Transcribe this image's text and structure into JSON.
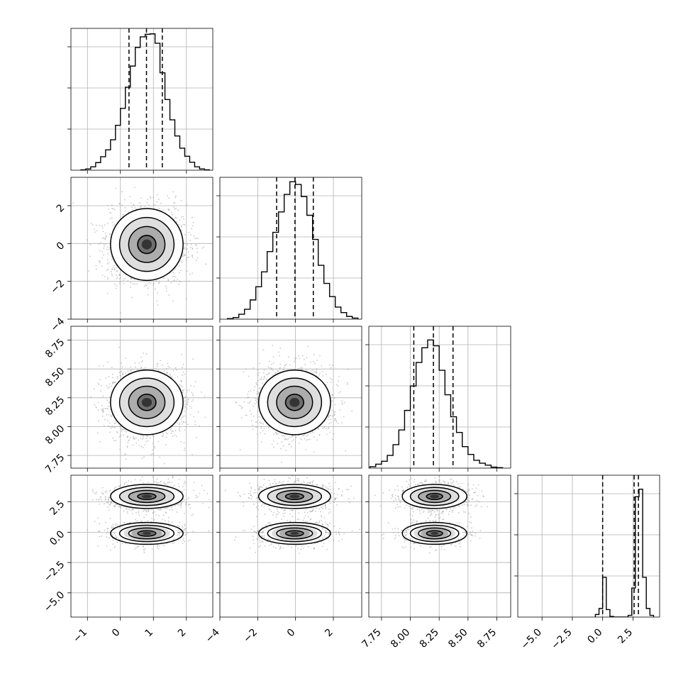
{
  "chart_data": {
    "type": "corner",
    "title": "",
    "parameters": [
      {
        "label": "",
        "range": [
          -1.5,
          2.8
        ],
        "ticks": [
          -1,
          0,
          1,
          2
        ],
        "tick_labels": [
          "−1",
          "0",
          "1",
          "2"
        ]
      },
      {
        "label": "",
        "range": [
          -4,
          3.5
        ],
        "ticks": [
          -4,
          -2,
          0,
          2
        ],
        "tick_labels": [
          "−4",
          "−2",
          "0",
          "2"
        ]
      },
      {
        "label": "",
        "range": [
          7.64,
          8.87
        ],
        "ticks": [
          7.75,
          8.0,
          8.25,
          8.5,
          8.75
        ],
        "tick_labels": [
          "7.75",
          "8.00",
          "8.25",
          "8.50",
          "8.75"
        ]
      },
      {
        "label": "",
        "range": [
          -7.0,
          4.7
        ],
        "ticks": [
          -5,
          -2.5,
          0,
          2.5
        ],
        "tick_labels": [
          "−5.0",
          "−2.5",
          "0.0",
          "2.5"
        ]
      }
    ],
    "histograms": [
      {
        "param": 0,
        "bin_edges": [
          -1.2,
          -1.05,
          -0.9,
          -0.75,
          -0.6,
          -0.45,
          -0.3,
          -0.15,
          0,
          0.15,
          0.3,
          0.45,
          0.6,
          0.75,
          0.9,
          1.05,
          1.2,
          1.35,
          1.5,
          1.65,
          1.8,
          1.95,
          2.1,
          2.25,
          2.4,
          2.55,
          2.7
        ],
        "counts": [
          1,
          3,
          8,
          18,
          32,
          48,
          72,
          106,
          146,
          196,
          246,
          290,
          315,
          321,
          322,
          300,
          230,
          167,
          119,
          81,
          52,
          33,
          19,
          8,
          3,
          1
        ],
        "quantiles": [
          0.26,
          0.79,
          1.27
        ],
        "ylim": [
          0,
          335
        ]
      },
      {
        "param": 1,
        "bin_edges": [
          -3.6,
          -3.3,
          -3.0,
          -2.7,
          -2.4,
          -2.1,
          -1.8,
          -1.5,
          -1.2,
          -0.9,
          -0.6,
          -0.3,
          0,
          0.3,
          0.6,
          0.9,
          1.2,
          1.5,
          1.8,
          2.1,
          2.4,
          2.7,
          3.0,
          3.3
        ],
        "counts": [
          1,
          3,
          9,
          18,
          35,
          59,
          86,
          123,
          158,
          195,
          227,
          250,
          245,
          223,
          189,
          145,
          98,
          65,
          41,
          22,
          12,
          5,
          2
        ],
        "quantiles": [
          -1.0,
          -0.03,
          0.94
        ],
        "ylim": [
          0,
          258
        ]
      },
      {
        "param": 2,
        "bin_edges": [
          7.65,
          7.7,
          7.75,
          7.8,
          7.85,
          7.9,
          7.95,
          8.0,
          8.05,
          8.1,
          8.15,
          8.2,
          8.25,
          8.3,
          8.35,
          8.4,
          8.45,
          8.5,
          8.55,
          8.6,
          8.65,
          8.7,
          8.75,
          8.8
        ],
        "counts": [
          3,
          8,
          14,
          26,
          48,
          78,
          118,
          168,
          216,
          246,
          262,
          250,
          200,
          150,
          105,
          73,
          44,
          28,
          16,
          10,
          6,
          2,
          1
        ],
        "quantiles": [
          8.03,
          8.2,
          8.37
        ],
        "ylim": [
          0,
          290
        ]
      },
      {
        "param": 3,
        "bin_edges": [
          -0.6,
          -0.3,
          0,
          0.3,
          0.6,
          0.9,
          1.2,
          1.5,
          1.8,
          2.1,
          2.4,
          2.7,
          3.0,
          3.3,
          3.6,
          3.9,
          4.2
        ],
        "counts": [
          12,
          40,
          185,
          35,
          3,
          0,
          0,
          0,
          0,
          8,
          135,
          560,
          595,
          185,
          40,
          8
        ],
        "quantiles": [
          0.0,
          2.6,
          2.95
        ],
        "ylim": [
          0,
          660
        ]
      }
    ],
    "pairs": [
      {
        "x_param": 0,
        "y_param": 1,
        "center": [
          0.8,
          -0.05
        ],
        "sigma": [
          0.55,
          0.95
        ]
      },
      {
        "x_param": 0,
        "y_param": 2,
        "center": [
          0.8,
          8.21
        ],
        "sigma": [
          0.55,
          0.14
        ]
      },
      {
        "x_param": 1,
        "y_param": 2,
        "center": [
          -0.05,
          8.21
        ],
        "sigma": [
          0.95,
          0.14
        ]
      },
      {
        "x_param": 0,
        "y_param": 3,
        "modes": [
          {
            "y": 2.95,
            "weight": 0.68,
            "sigma_y": 0.55
          },
          {
            "y": -0.1,
            "weight": 0.32,
            "sigma_y": 0.5
          }
        ],
        "x_center": 0.8,
        "x_sigma": 0.55
      },
      {
        "x_param": 1,
        "y_param": 3,
        "modes": [
          {
            "y": 2.95,
            "weight": 0.68,
            "sigma_y": 0.55
          },
          {
            "y": -0.1,
            "weight": 0.32,
            "sigma_y": 0.5
          }
        ],
        "x_center": -0.05,
        "x_sigma": 0.95
      },
      {
        "x_param": 2,
        "y_param": 3,
        "modes": [
          {
            "y": 2.95,
            "weight": 0.68,
            "sigma_y": 0.55
          },
          {
            "y": -0.1,
            "weight": 0.32,
            "sigma_y": 0.5
          }
        ],
        "x_center": 8.21,
        "x_sigma": 0.14
      }
    ],
    "contour_levels_sigma": [
      0.5,
      1.0,
      1.5,
      2.0
    ],
    "quantile_levels": [
      0.16,
      0.5,
      0.84
    ],
    "grid": true,
    "colors": {
      "line": "#000000",
      "grid": "#b0b0b0",
      "points": "#9a9a9a",
      "frame": "#000000"
    }
  }
}
